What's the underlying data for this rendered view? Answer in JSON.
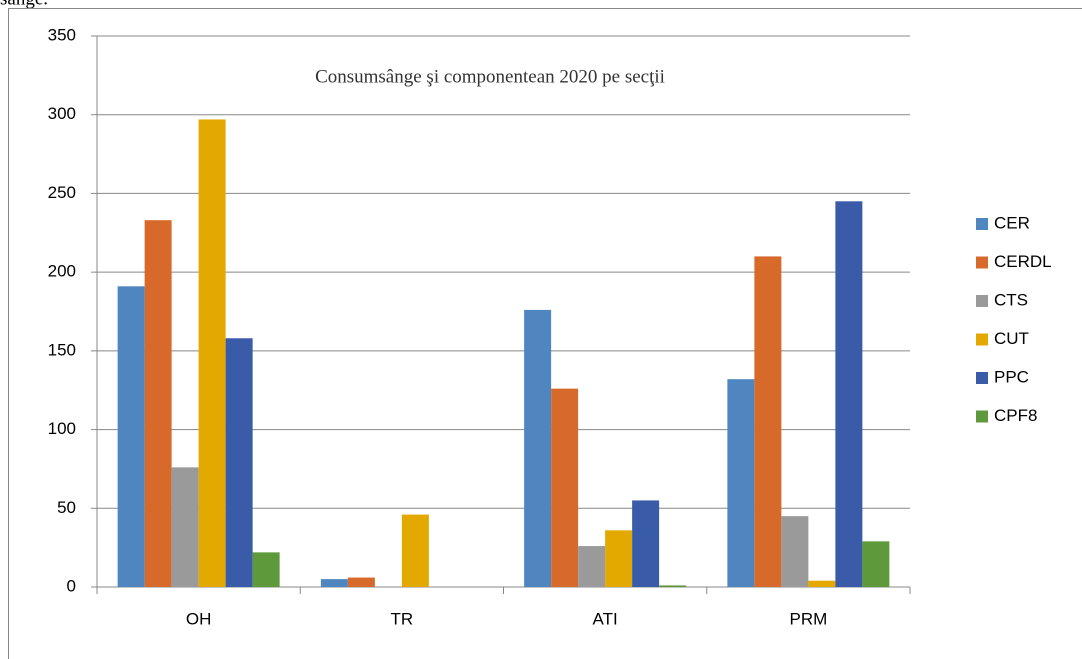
{
  "text_above": "sânge.",
  "chart_data": {
    "type": "bar",
    "title": "Consumsânge şi componentean 2020 pe secţii",
    "categories": [
      "OH",
      "TR",
      "ATI",
      "PRM"
    ],
    "series": [
      {
        "name": "CER",
        "color": "#4f86c0",
        "values": [
          191,
          5,
          176,
          132
        ]
      },
      {
        "name": "CERDL",
        "color": "#d7692b",
        "values": [
          233,
          6,
          126,
          210
        ]
      },
      {
        "name": "CTS",
        "color": "#9a9a9a",
        "values": [
          76,
          0,
          26,
          45
        ]
      },
      {
        "name": "CUT",
        "color": "#e4a900",
        "values": [
          297,
          46,
          36,
          4
        ]
      },
      {
        "name": "PPC",
        "color": "#3a5ca8",
        "values": [
          158,
          0,
          55,
          245
        ]
      },
      {
        "name": "CPF8",
        "color": "#5e9a3b",
        "values": [
          22,
          0,
          1,
          29
        ]
      }
    ],
    "ylim": [
      0,
      350
    ],
    "yticks": [
      0,
      50,
      100,
      150,
      200,
      250,
      300,
      350
    ],
    "grid": true,
    "legend": "right"
  }
}
